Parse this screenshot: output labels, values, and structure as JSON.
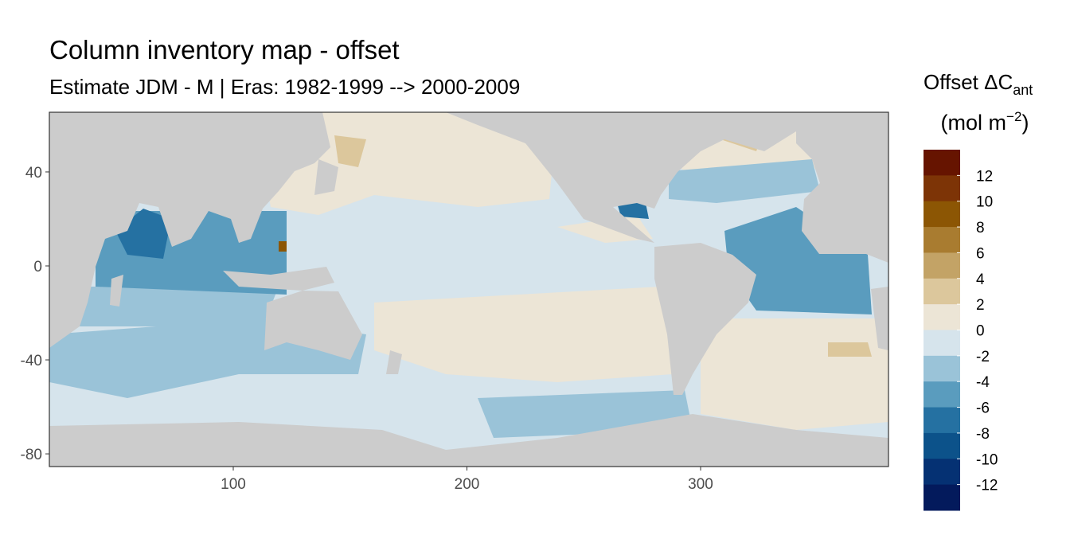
{
  "chart_data": {
    "type": "raster-map",
    "title": "Column inventory map - offset",
    "subtitle": "Estimate JDM - M | Eras: 1982-1999 --> 2000-2009",
    "xlim": [
      21.3,
      380.4
    ],
    "xticks": [
      100,
      200,
      300
    ],
    "ylim": [
      -85.4,
      65.4
    ],
    "yticks": [
      40,
      0,
      -40,
      -80
    ],
    "legend": {
      "title_main": "Offset ΔC",
      "title_sub": "ant",
      "units_open": "(mol m",
      "units_sup": "−2",
      "units_close": ")",
      "limits": [
        -14,
        14
      ],
      "breaks": [
        12,
        10,
        8,
        6,
        4,
        2,
        0,
        -2,
        -4,
        -6,
        -8,
        -10,
        -12
      ],
      "colors": [
        "#661400",
        "#7d3406",
        "#8c5604",
        "#a97c30",
        "#c3a366",
        "#dcc79c",
        "#ece5d6",
        "#d6e4ec",
        "#9ac3d8",
        "#5a9cbe",
        "#2571a2",
        "#0c528a",
        "#053173",
        "#031a5c"
      ]
    }
  }
}
